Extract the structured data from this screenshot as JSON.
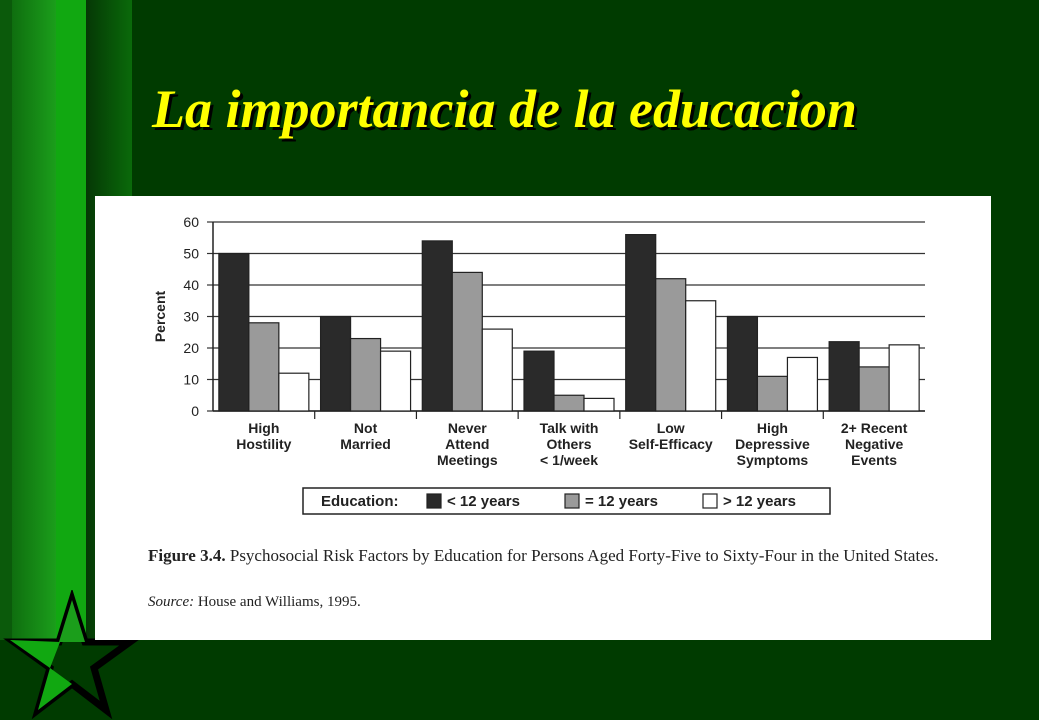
{
  "slide": {
    "title": "La importancia de la educacion"
  },
  "figure": {
    "number": "Figure 3.4.",
    "caption": "Psychosocial Risk Factors by Education for Persons Aged Forty-Five to Sixty-Four in the United States.",
    "source_label": "Source:",
    "source_text": "House and Williams, 1995."
  },
  "chart_data": {
    "type": "bar",
    "ylabel": "Percent",
    "ylim": [
      0,
      60
    ],
    "yticks": [
      0,
      10,
      20,
      30,
      40,
      50,
      60
    ],
    "grid": true,
    "legend_title": "Education:",
    "legend_position": "bottom",
    "categories": [
      [
        "High",
        "Hostility"
      ],
      [
        "Not",
        "Married"
      ],
      [
        "Never",
        "Attend",
        "Meetings"
      ],
      [
        "Talk with",
        "Others",
        "< 1/week"
      ],
      [
        "Low",
        "Self-Efficacy"
      ],
      [
        "High",
        "Depressive",
        "Symptoms"
      ],
      [
        "2+ Recent",
        "Negative",
        "Events"
      ]
    ],
    "series": [
      {
        "name": "< 12 years",
        "color": "#2a2a2a",
        "values": [
          50,
          30,
          54,
          19,
          56,
          30,
          22
        ]
      },
      {
        "name": "= 12 years",
        "color": "#9a9a9a",
        "values": [
          28,
          23,
          44,
          5,
          42,
          11,
          14
        ]
      },
      {
        "name": "> 12 years",
        "color": "#ffffff",
        "values": [
          12,
          19,
          26,
          4,
          35,
          17,
          21
        ]
      }
    ]
  }
}
